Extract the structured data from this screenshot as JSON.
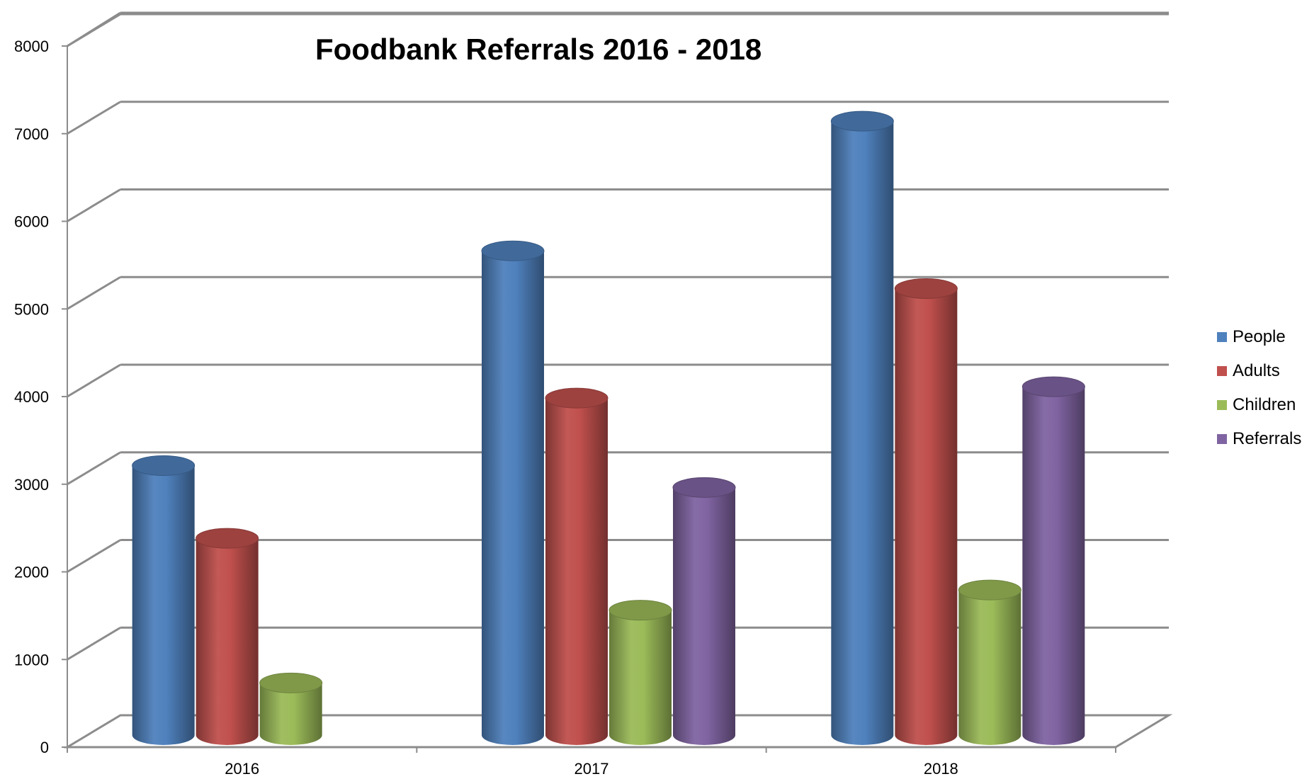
{
  "chart_data": {
    "type": "bar",
    "title": "Foodbank Referrals 2016 - 2018",
    "categories": [
      "2016",
      "2017",
      "2018"
    ],
    "series": [
      {
        "name": "People",
        "color": "#4F81BD",
        "values": [
          3350,
          5800,
          7280
        ]
      },
      {
        "name": "Adults",
        "color": "#C0504D",
        "values": [
          2520,
          4120,
          5370
        ]
      },
      {
        "name": "Children",
        "color": "#9BBB59",
        "values": [
          870,
          1700,
          1930
        ]
      },
      {
        "name": "Referrals",
        "color": "#8064A2",
        "values": [
          null,
          3100,
          4250
        ]
      }
    ],
    "yticks": [
      "0",
      "1000",
      "2000",
      "3000",
      "4000",
      "5000",
      "6000",
      "7000",
      "8000"
    ],
    "ylim": [
      0,
      8000
    ],
    "grid": true,
    "legend_position": "right",
    "style": "3d-cylinder"
  }
}
